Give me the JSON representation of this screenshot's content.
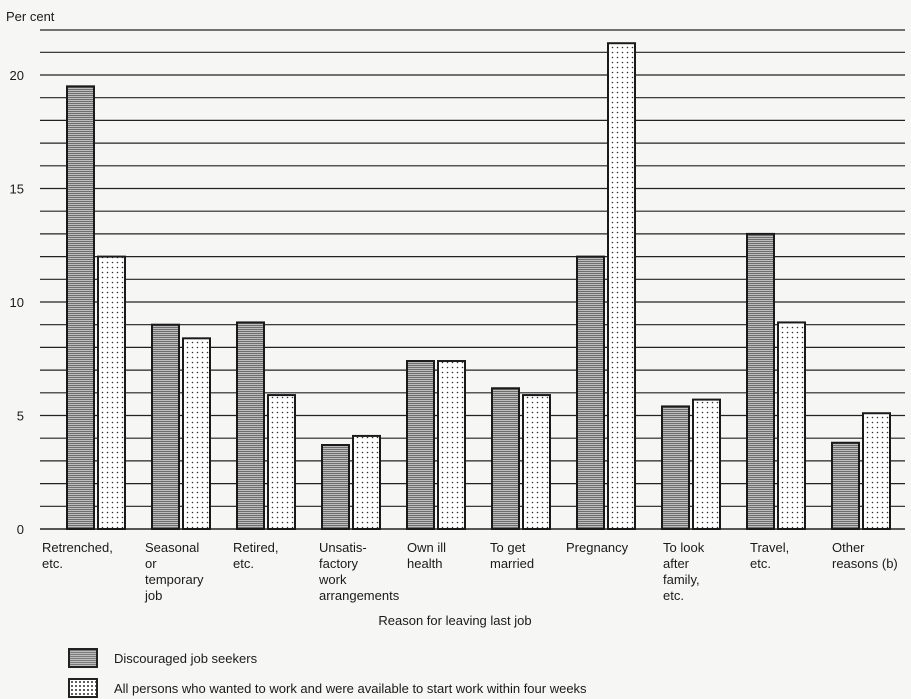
{
  "chart_data": {
    "type": "bar",
    "ylabel": "Per cent",
    "xlabel": "Reason for leaving last job",
    "ylim": [
      0,
      22
    ],
    "yticks": [
      0,
      5,
      10,
      15,
      20
    ],
    "grid": true,
    "legend_position": "bottom",
    "categories": [
      [
        "Retrenched,",
        "etc."
      ],
      [
        "Seasonal",
        "or",
        "temporary",
        "job"
      ],
      [
        "Retired,",
        "etc."
      ],
      [
        "Unsatis-",
        "factory",
        "work",
        "arrangements"
      ],
      [
        "Own ill",
        "health"
      ],
      [
        "To get",
        "married"
      ],
      [
        "Pregnancy"
      ],
      [
        "To look",
        "after",
        "family,",
        "etc."
      ],
      [
        "Travel,",
        "etc."
      ],
      [
        "Other",
        "reasons (b)"
      ]
    ],
    "series": [
      {
        "name": "Discouraged job seekers",
        "values": [
          19.5,
          9.0,
          9.1,
          3.7,
          7.4,
          6.2,
          12.0,
          5.4,
          13.0,
          3.8
        ],
        "color": "#8a8a8a"
      },
      {
        "name": "All persons who wanted to work and were available to start work within four weeks",
        "values": [
          12.0,
          8.4,
          5.9,
          4.1,
          7.4,
          5.9,
          21.4,
          5.7,
          9.1,
          5.1
        ],
        "color": "#ffffff"
      }
    ]
  }
}
